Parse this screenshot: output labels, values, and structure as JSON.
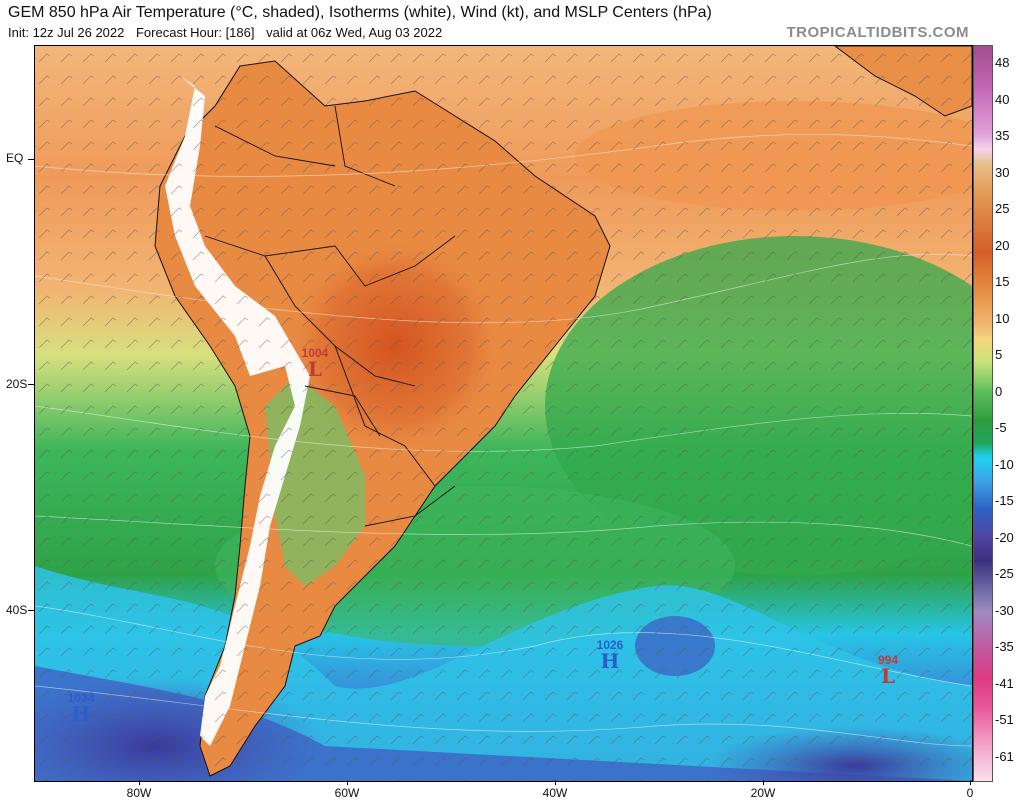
{
  "header": {
    "title": "GEM 850 hPa Air Temperature (°C, shaded), Isotherms (white), Wind (kt), and MSLP Centers (hPa)",
    "init": "Init: 12z Jul 26 2022",
    "forecast_hour": "Forecast Hour: [186]",
    "valid": "valid at 06z Wed, Aug 03 2022",
    "brand": "TROPICALTIDBITS.COM"
  },
  "axes": {
    "y_labels": [
      "EQ",
      "20S",
      "40S"
    ],
    "x_labels": [
      "80W",
      "60W",
      "40W",
      "20W",
      "0"
    ]
  },
  "colorbar": {
    "labels": [
      "48",
      "40",
      "35",
      "30",
      "25",
      "20",
      "15",
      "10",
      "5",
      "0",
      "-5",
      "-10",
      "-15",
      "-20",
      "-25",
      "-30",
      "-35",
      "-41",
      "-51",
      "-61"
    ]
  },
  "pressure_centers": [
    {
      "type": "L",
      "value": "1004",
      "color": "#c33a3a"
    },
    {
      "type": "H",
      "value": "1026",
      "color": "#2b5dcc"
    },
    {
      "type": "H",
      "value": "1034",
      "color": "#2b5dcc"
    },
    {
      "type": "L",
      "value": "994",
      "color": "#c33a3a"
    }
  ]
}
